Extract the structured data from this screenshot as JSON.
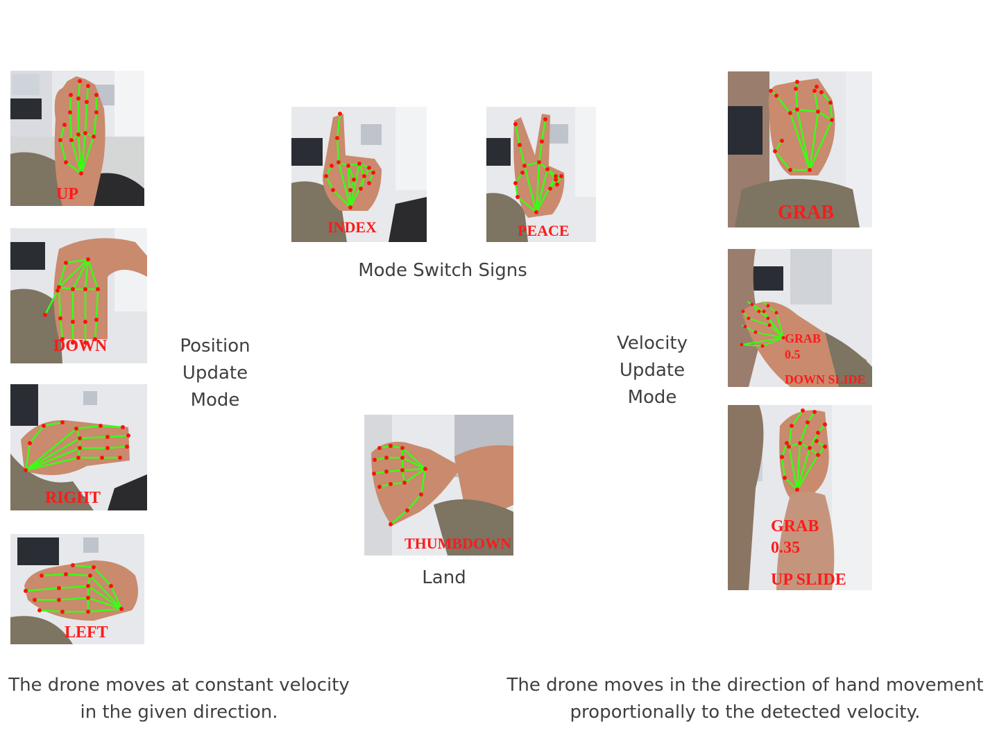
{
  "captions": {
    "mode_switch": "Mode Switch Signs",
    "position_mode": [
      "Position",
      "Update",
      "Mode"
    ],
    "velocity_mode": [
      "Velocity",
      "Update",
      "Mode"
    ],
    "land": "Land",
    "left_footer": [
      "The drone moves at constant velocity",
      "in the given direction."
    ],
    "right_footer": [
      "The drone moves in the direction of hand movement",
      "proportionally to the detected velocity."
    ]
  },
  "gesture_labels": {
    "up": "UP",
    "down": "DOWN",
    "right": "RIGHT",
    "left": "LEFT",
    "index": "INDEX",
    "peace": "PEACE",
    "thumbdown": "THUMBDOWN",
    "grab": "GRAB",
    "grab_down": [
      "GRAB",
      "0.5",
      "DOWN SLIDE"
    ],
    "grab_up": [
      "GRAB",
      "0.35",
      "UP SLIDE"
    ]
  },
  "colors": {
    "landmark_line": "#39ff14",
    "landmark_point": "#ff1010",
    "overlay_text": "#ff1a1a",
    "skin": "#c98a6e",
    "shirt": "#7d7461",
    "wall": "#e8eaee"
  }
}
